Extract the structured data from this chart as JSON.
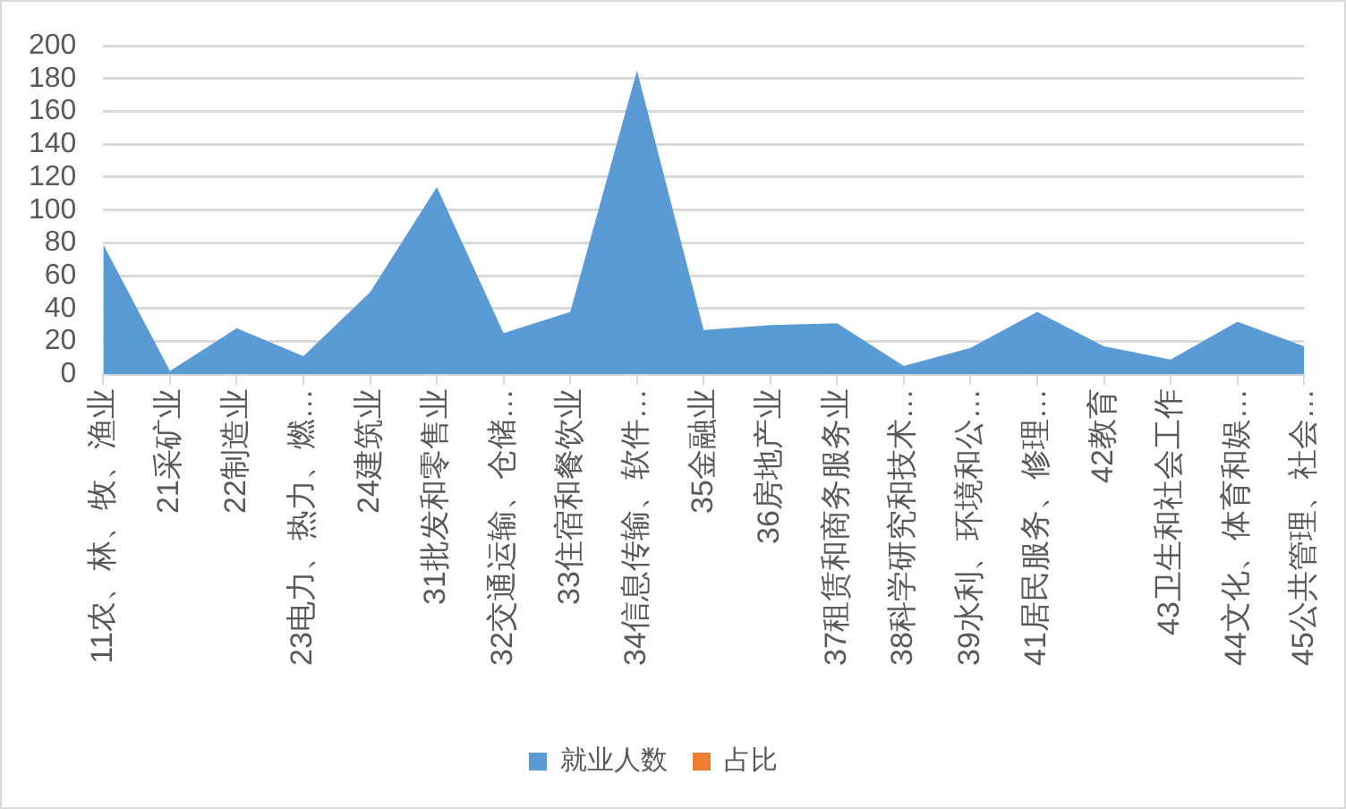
{
  "chart_data": {
    "type": "area",
    "categories": [
      "11农、林、牧、渔业",
      "21采矿业",
      "22制造业",
      "23电力、热力、燃…",
      "24建筑业",
      "31批发和零售业",
      "32交通运输、仓储…",
      "33住宿和餐饮业",
      "34信息传输、软件…",
      "35金融业",
      "36房地产业",
      "37租赁和商务服务业",
      "38科学研究和技术…",
      "39水利、环境和公…",
      "41居民服务、修理…",
      "42教育",
      "43卫生和社会工作",
      "44文化、体育和娱…",
      "45公共管理、社会…"
    ],
    "series": [
      {
        "name": "就业人数",
        "color": "#5b9bd5",
        "values": [
          79,
          2,
          28,
          11,
          50,
          114,
          25,
          38,
          185,
          27,
          30,
          31,
          5,
          16,
          38,
          17,
          9,
          32,
          17
        ]
      },
      {
        "name": "占比",
        "color": "#ed7d31",
        "values": [
          null,
          null,
          null,
          null,
          null,
          null,
          null,
          null,
          null,
          null,
          null,
          null,
          null,
          null,
          null,
          null,
          null,
          null,
          null
        ]
      }
    ],
    "ylim": [
      0,
      200
    ],
    "yticks": [
      0,
      20,
      40,
      60,
      80,
      100,
      120,
      140,
      160,
      180,
      200
    ],
    "grid": "y",
    "legend": "bottom"
  }
}
